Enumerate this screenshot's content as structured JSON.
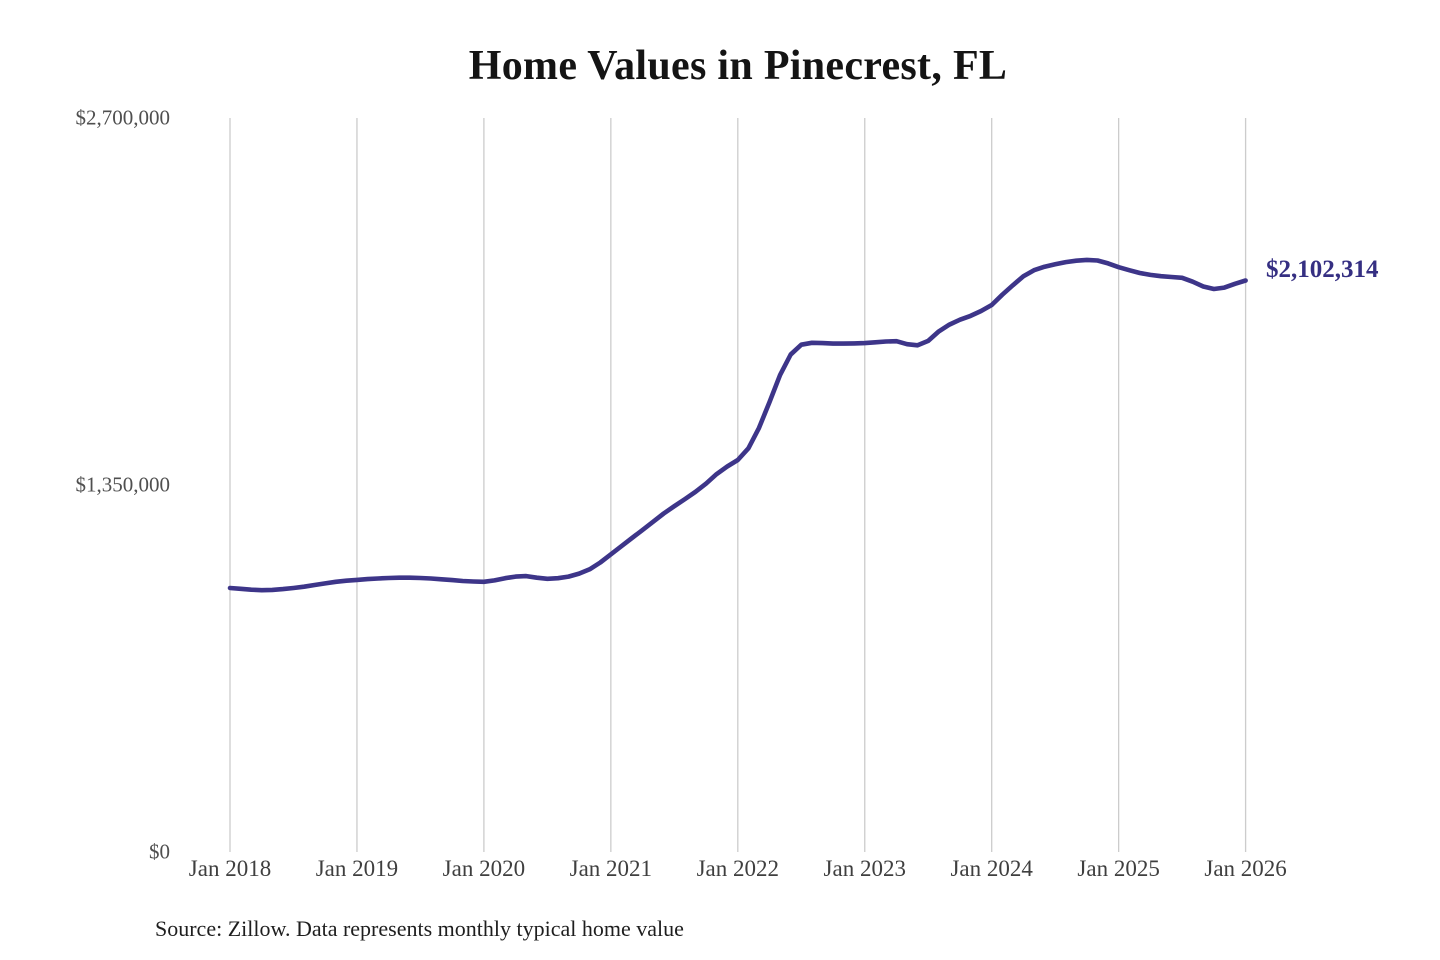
{
  "title": "Home Values in Pinecrest, FL",
  "current_value_label": "$2,102,314",
  "source_note": "Source: Zillow. Data represents monthly typical home value",
  "colors": {
    "line": "#3d3589",
    "value_label": "#352f82",
    "grid": "#cccccc",
    "axis_text": "#4a4a4a",
    "title_text": "#141414"
  },
  "chart_data": {
    "type": "line",
    "title": "Home Values in Pinecrest, FL",
    "xlabel": "",
    "ylabel": "",
    "ylim": [
      0,
      2700000
    ],
    "grid": "vertical-yearly",
    "legend": "none",
    "x_tick_labels": [
      "Jan 2018",
      "Jan 2019",
      "Jan 2020",
      "Jan 2021",
      "Jan 2022",
      "Jan 2023",
      "Jan 2024",
      "Jan 2025",
      "Jan 2026"
    ],
    "y_ticks": {
      "values": [
        0,
        1350000,
        2700000
      ],
      "labels": [
        "$0",
        "$1,350,000",
        "$2,700,000"
      ]
    },
    "series": [
      {
        "name": "Monthly typical home value",
        "start": "Jan 2018",
        "interval": "monthly",
        "values": [
          971000,
          968000,
          965000,
          963000,
          964000,
          967000,
          971000,
          976000,
          982000,
          988000,
          994000,
          998000,
          1001000,
          1004000,
          1006000,
          1008000,
          1009000,
          1009000,
          1008000,
          1006000,
          1003000,
          1000000,
          997000,
          995000,
          994000,
          999000,
          1007000,
          1013000,
          1015000,
          1009000,
          1005000,
          1007000,
          1013000,
          1024000,
          1040000,
          1065000,
          1095000,
          1125000,
          1155000,
          1185000,
          1215000,
          1245000,
          1272000,
          1298000,
          1325000,
          1355000,
          1390000,
          1418000,
          1442000,
          1485000,
          1560000,
          1655000,
          1755000,
          1830000,
          1866000,
          1873000,
          1872000,
          1870000,
          1870000,
          1871000,
          1872000,
          1875000,
          1878000,
          1879000,
          1868000,
          1864000,
          1880000,
          1915000,
          1940000,
          1958000,
          1972000,
          1990000,
          2012000,
          2050000,
          2085000,
          2118000,
          2140000,
          2153000,
          2162000,
          2170000,
          2175000,
          2178000,
          2176000,
          2165000,
          2151000,
          2140000,
          2130000,
          2123000,
          2118000,
          2115000,
          2112000,
          2098000,
          2080000,
          2071000,
          2076000,
          2090000,
          2102314
        ]
      }
    ],
    "end_value": 2102314,
    "end_label": "$2,102,314"
  }
}
